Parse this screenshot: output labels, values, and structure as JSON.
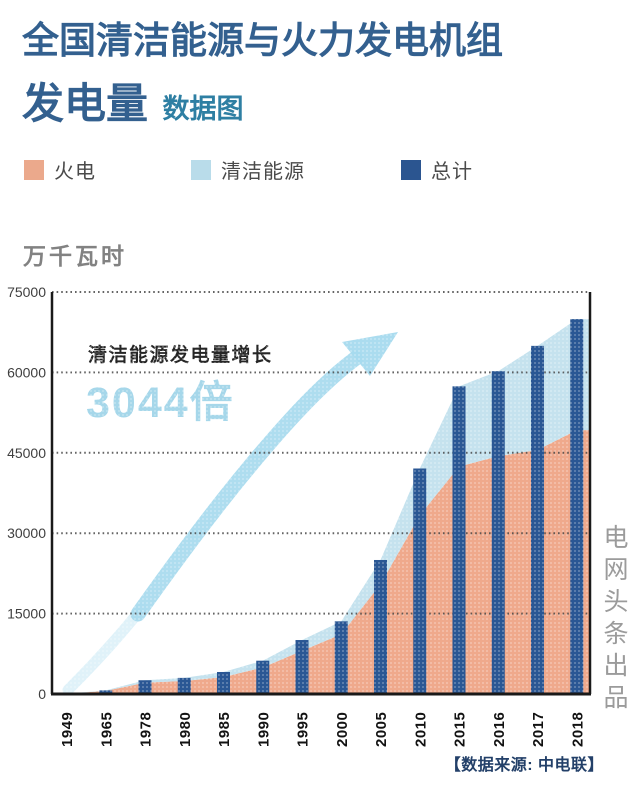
{
  "header": {
    "title_line1": "全国清洁能源与火力发电机组",
    "title_line2": "发电量",
    "subtitle": "数据图"
  },
  "unit_label": "万千瓦时",
  "legend": {
    "items": [
      {
        "label": "火电",
        "color": "#eba98c"
      },
      {
        "label": "清洁能源",
        "color": "#b9dcea"
      },
      {
        "label": "总计",
        "color": "#2b5590"
      }
    ]
  },
  "annotation": {
    "line1": "清洁能源发电量增长",
    "line2": "3044倍"
  },
  "watermark": "电网头条出品",
  "source_note": "【数据来源: 中电联】",
  "colors": {
    "title": "#33608f",
    "subtitle": "#2e7fa3",
    "thermal_area": "#efa98c",
    "clean_area": "#c5e2ee",
    "total_bar": "#2a5794",
    "annotation_highlight": "#a6d7ea",
    "arrow": "#a7daee",
    "axis": "#1a1a1a",
    "grid": "#4a4a4a",
    "tick_label": "#3f3f3f",
    "x_label": "#121212",
    "unit": "#828282",
    "watermark": "#9b9b9b",
    "source": "#234069"
  },
  "chart_data": {
    "type": "combo: stacked area (火电 + 清洁能源) with overlaid bars (总计)",
    "categories": [
      "1949",
      "1965",
      "1978",
      "1980",
      "1985",
      "1990",
      "1995",
      "2000",
      "2005",
      "2010",
      "2015",
      "2016",
      "2017",
      "2018"
    ],
    "series": [
      {
        "name": "火电",
        "type": "area",
        "color": "#efa98c",
        "values": [
          36,
          572,
          2120,
          2424,
          3183,
          4950,
          8074,
          11142,
          20473,
          33319,
          42420,
          44371,
          45513,
          49231
        ]
      },
      {
        "name": "清洁能源",
        "type": "area-stacked-on-火电",
        "color": "#c5e2ee",
        "values": [
          7,
          104,
          446,
          582,
          924,
          1262,
          1996,
          2414,
          4530,
          8753,
          14980,
          15857,
          19438,
          20709
        ]
      },
      {
        "name": "总计",
        "type": "bar",
        "color": "#2a5794",
        "values": [
          43,
          676,
          2566,
          3006,
          4107,
          6212,
          10070,
          13556,
          25003,
          42072,
          57400,
          60228,
          64951,
          69940
        ]
      }
    ],
    "ylabel": "万千瓦时",
    "yticks": [
      0,
      15000,
      30000,
      45000,
      60000,
      75000
    ],
    "ylim": [
      0,
      75000
    ],
    "grid": "dotted horizontal lines, plot box solid left/right/bottom",
    "legend_position": "top",
    "x_label_rotation": -90
  }
}
